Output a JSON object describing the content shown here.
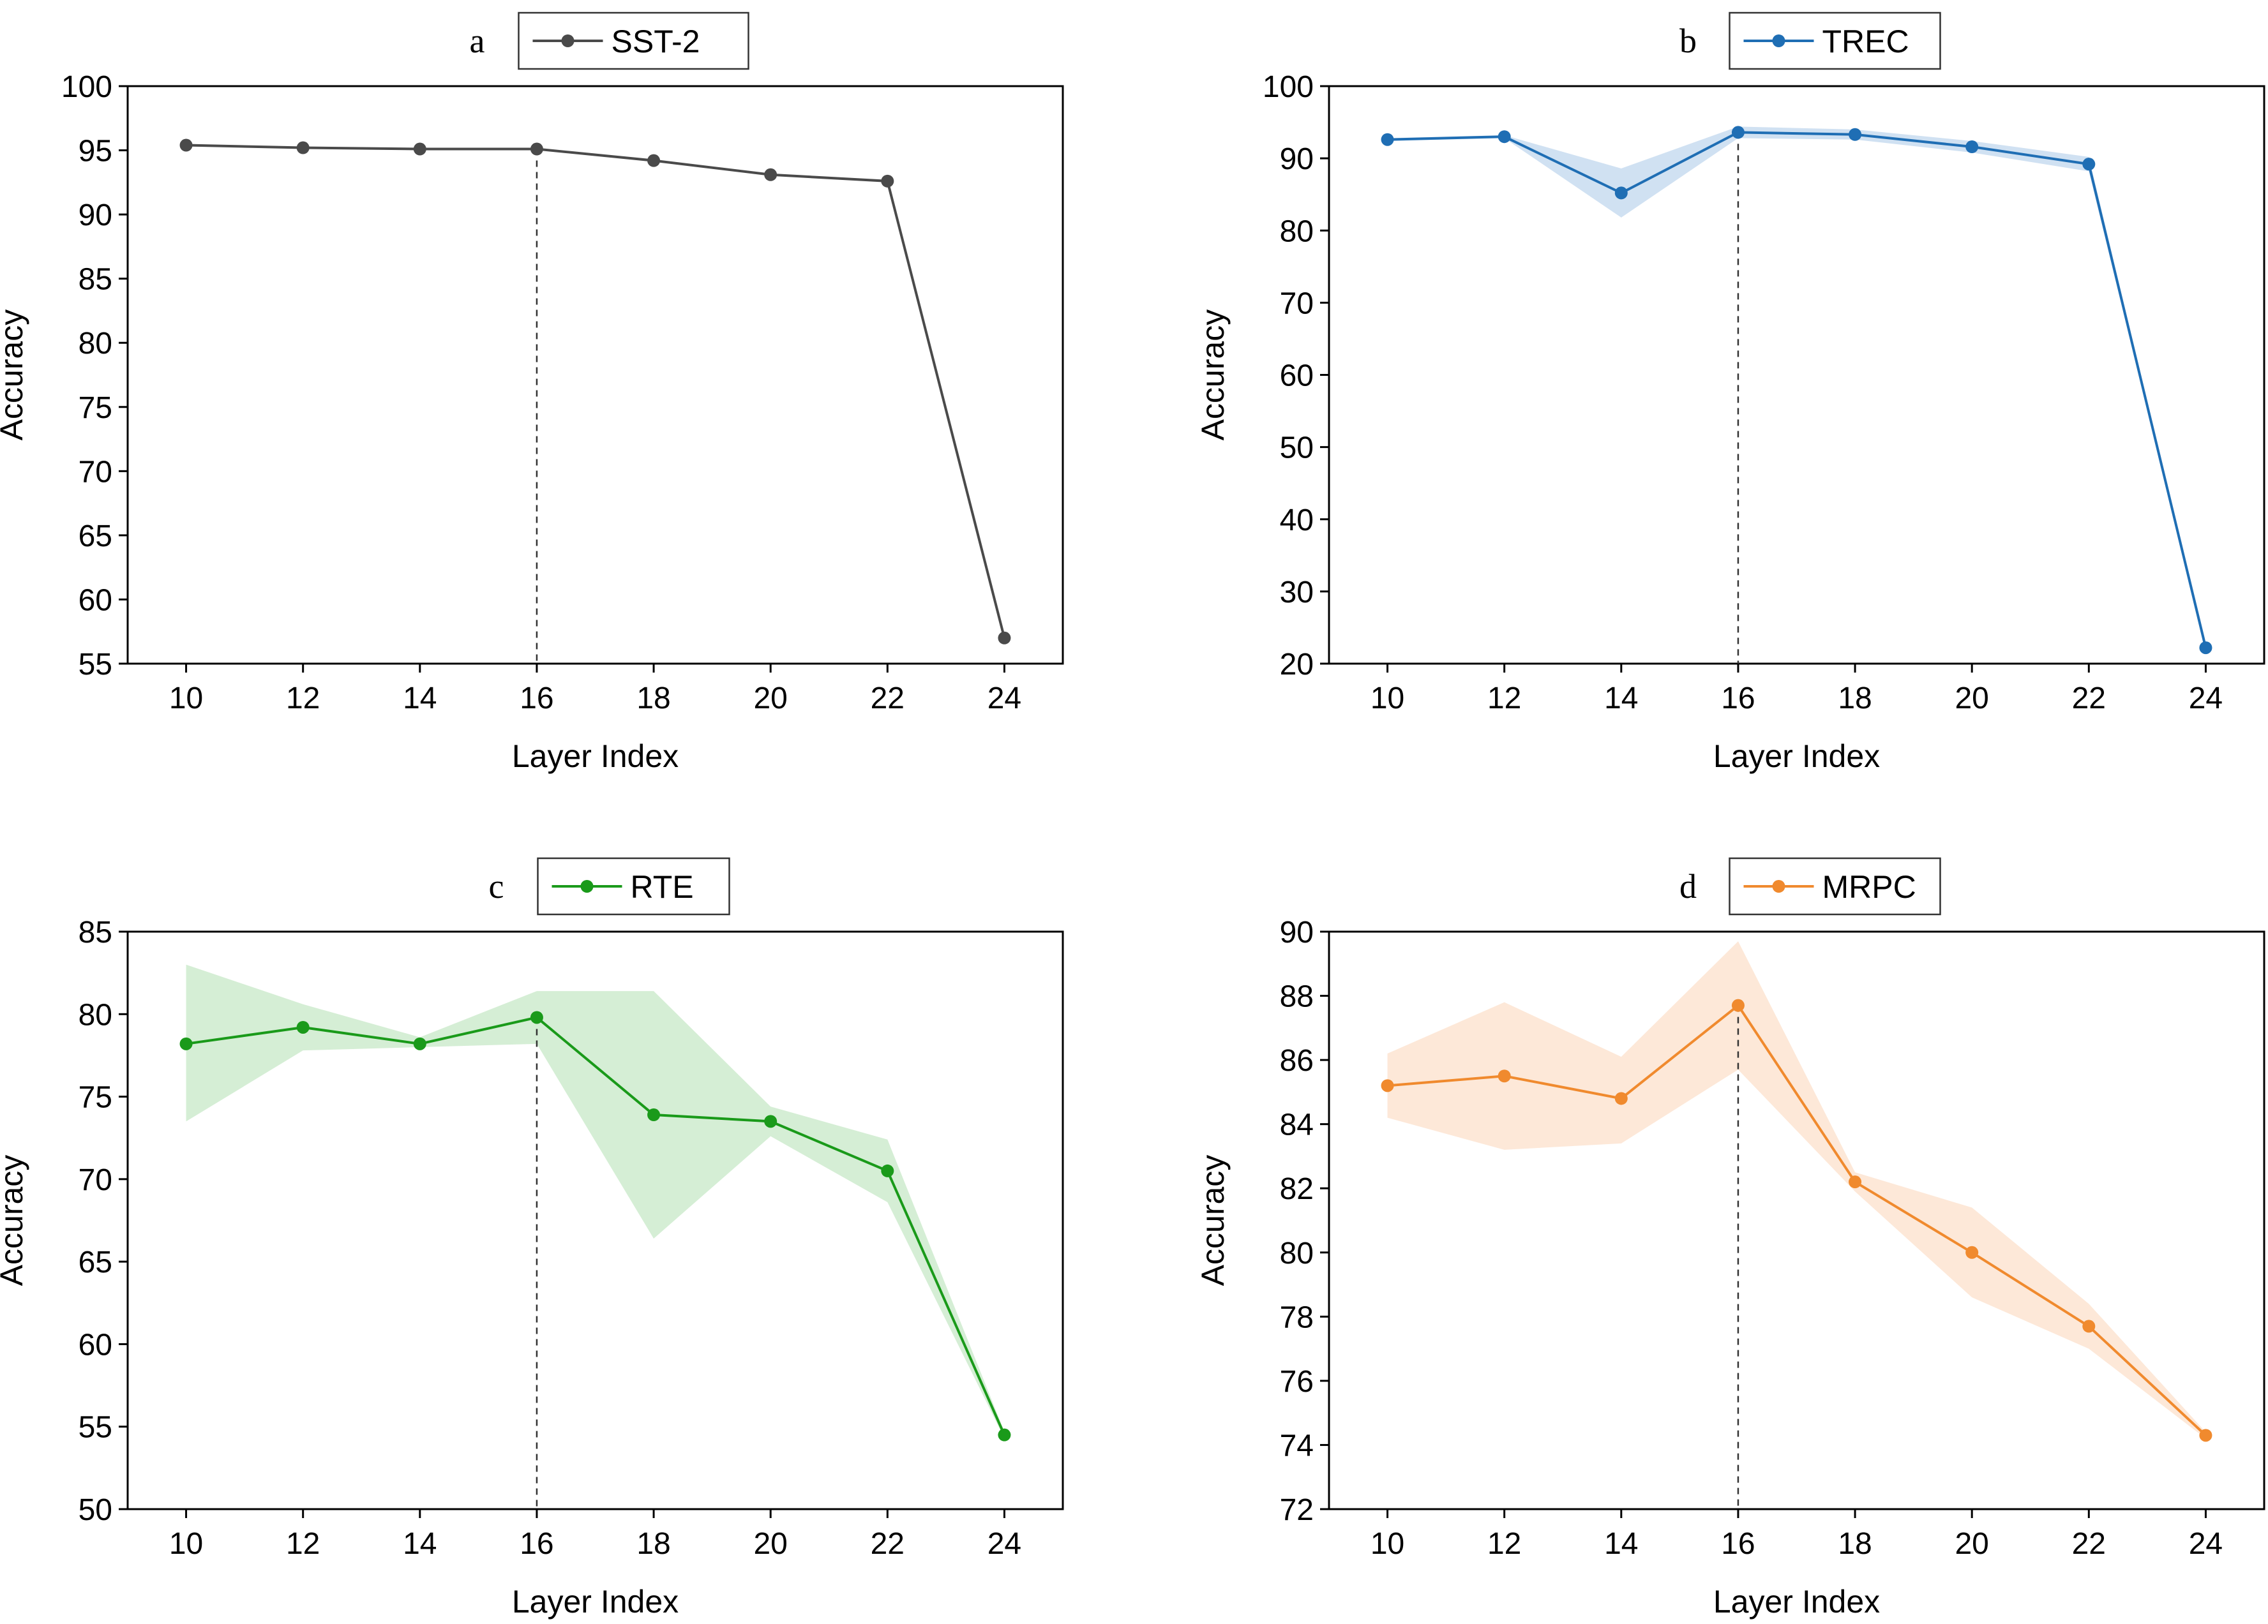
{
  "chart_data": [
    {
      "type": "line",
      "panel_label": "a",
      "xlabel": "Layer Index",
      "ylabel": "Accuracy",
      "x": [
        10,
        12,
        14,
        16,
        18,
        20,
        22,
        24
      ],
      "xlim": [
        9,
        25
      ],
      "ylim": [
        55,
        100
      ],
      "yticks": [
        55,
        60,
        65,
        70,
        75,
        80,
        85,
        90,
        95,
        100
      ],
      "reference_x": 16,
      "color": "#4a4a4a",
      "band_color": "#4a4a4a",
      "legend_position": "top-center",
      "series": [
        {
          "name": "SST-2",
          "values": [
            95.4,
            95.2,
            95.1,
            95.1,
            94.2,
            93.1,
            92.6,
            57.0
          ],
          "lower": [
            95.4,
            95.2,
            95.1,
            95.1,
            94.2,
            93.1,
            92.6,
            57.0
          ],
          "upper": [
            95.4,
            95.2,
            95.1,
            95.1,
            94.2,
            93.1,
            92.6,
            57.0
          ]
        }
      ]
    },
    {
      "type": "line",
      "panel_label": "b",
      "xlabel": "Layer Index",
      "ylabel": "Accuracy",
      "x": [
        10,
        12,
        14,
        16,
        18,
        20,
        22,
        24
      ],
      "xlim": [
        9,
        25
      ],
      "ylim": [
        20,
        100
      ],
      "yticks": [
        20,
        30,
        40,
        50,
        60,
        70,
        80,
        90,
        100
      ],
      "reference_x": 16,
      "color": "#1f6eb4",
      "band_color": "#a9c8e8",
      "legend_position": "top-center",
      "series": [
        {
          "name": "TREC",
          "values": [
            92.6,
            93.0,
            85.2,
            93.6,
            93.3,
            91.6,
            89.2,
            22.2
          ],
          "lower": [
            92.4,
            92.8,
            81.8,
            92.8,
            92.6,
            90.8,
            88.2,
            22.0
          ],
          "upper": [
            92.8,
            93.2,
            88.6,
            94.4,
            94.0,
            92.4,
            90.2,
            22.4
          ]
        }
      ]
    },
    {
      "type": "line",
      "panel_label": "c",
      "xlabel": "Layer Index",
      "ylabel": "Accuracy",
      "x": [
        10,
        12,
        14,
        16,
        18,
        20,
        22,
        24
      ],
      "xlim": [
        9,
        25
      ],
      "ylim": [
        50,
        85
      ],
      "yticks": [
        50,
        55,
        60,
        65,
        70,
        75,
        80,
        85
      ],
      "reference_x": 16,
      "color": "#1a9a1a",
      "band_color": "#b2e0b2",
      "legend_position": "top-center",
      "series": [
        {
          "name": "RTE",
          "values": [
            78.2,
            79.2,
            78.2,
            79.8,
            73.9,
            73.5,
            70.5,
            54.5
          ],
          "lower": [
            73.5,
            77.8,
            78.0,
            78.2,
            66.4,
            72.6,
            68.6,
            54.3
          ],
          "upper": [
            83.0,
            80.6,
            78.6,
            81.4,
            81.4,
            74.4,
            72.4,
            54.7
          ]
        }
      ]
    },
    {
      "type": "line",
      "panel_label": "d",
      "xlabel": "Layer Index",
      "ylabel": "Accuracy",
      "x": [
        10,
        12,
        14,
        16,
        18,
        20,
        22,
        24
      ],
      "xlim": [
        9,
        25
      ],
      "ylim": [
        72,
        90
      ],
      "yticks": [
        72,
        74,
        76,
        78,
        80,
        82,
        84,
        86,
        88,
        90
      ],
      "reference_x": 16,
      "color": "#f08a2e",
      "band_color": "#fbd6b8",
      "legend_position": "top-center",
      "series": [
        {
          "name": "MRPC",
          "values": [
            85.2,
            85.5,
            84.8,
            87.7,
            82.2,
            80.0,
            77.7,
            74.3
          ],
          "lower": [
            84.2,
            83.2,
            83.4,
            85.7,
            81.9,
            78.6,
            77.0,
            74.2
          ],
          "upper": [
            86.2,
            87.8,
            86.1,
            89.7,
            82.5,
            81.4,
            78.4,
            74.4
          ]
        }
      ]
    }
  ]
}
